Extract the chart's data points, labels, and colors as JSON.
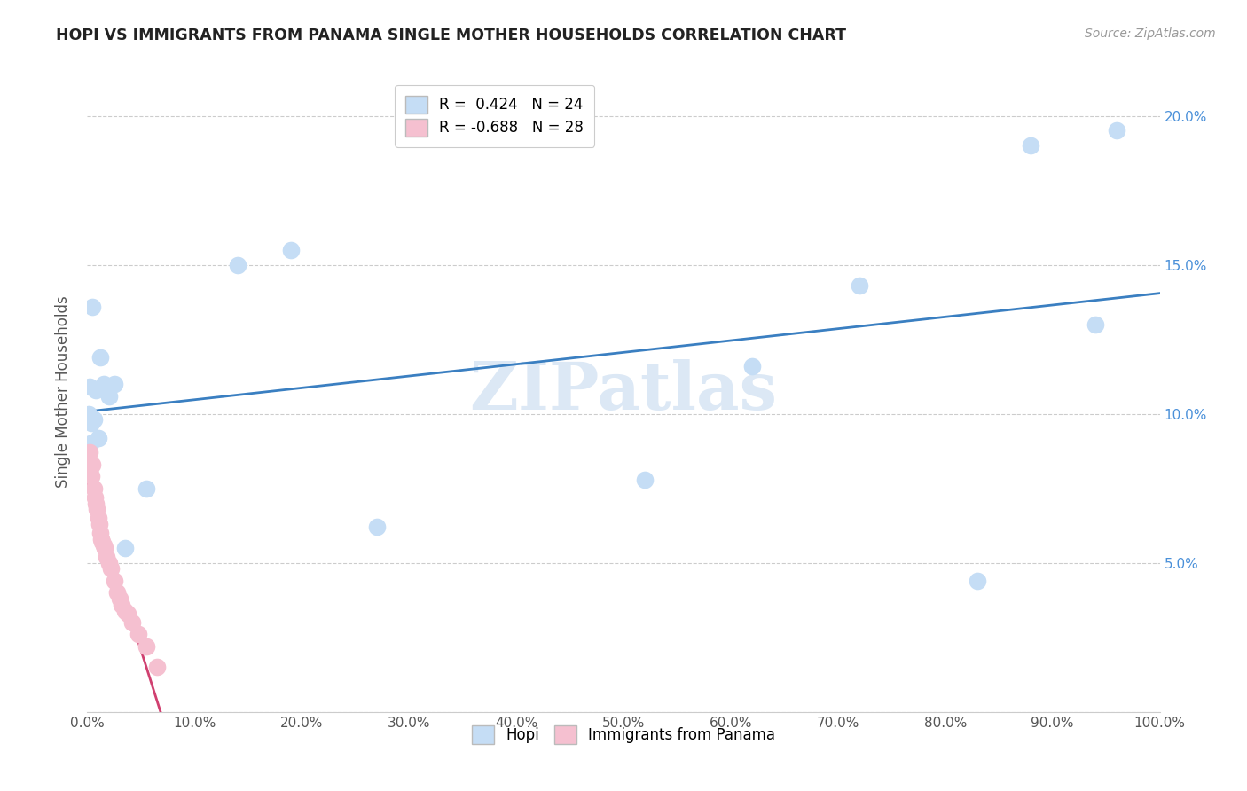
{
  "title": "HOPI VS IMMIGRANTS FROM PANAMA SINGLE MOTHER HOUSEHOLDS CORRELATION CHART",
  "source": "Source: ZipAtlas.com",
  "ylabel": "Single Mother Households",
  "legend_entries": [
    {
      "label": "R =  0.424   N = 24",
      "color": "#b8d4f0"
    },
    {
      "label": "R = -0.688   N = 28",
      "color": "#f0b8cc"
    }
  ],
  "legend_labels": [
    "Hopi",
    "Immigrants from Panama"
  ],
  "hopi_x": [
    0.001,
    0.002,
    0.003,
    0.004,
    0.005,
    0.006,
    0.008,
    0.01,
    0.012,
    0.015,
    0.02,
    0.025,
    0.035,
    0.055,
    0.14,
    0.19,
    0.27,
    0.52,
    0.62,
    0.72,
    0.83,
    0.88,
    0.94,
    0.96
  ],
  "hopi_y": [
    0.1,
    0.109,
    0.09,
    0.097,
    0.136,
    0.098,
    0.108,
    0.092,
    0.119,
    0.11,
    0.106,
    0.11,
    0.055,
    0.075,
    0.15,
    0.155,
    0.062,
    0.078,
    0.116,
    0.143,
    0.044,
    0.19,
    0.13,
    0.195
  ],
  "panama_x": [
    0.002,
    0.003,
    0.004,
    0.005,
    0.006,
    0.007,
    0.008,
    0.009,
    0.01,
    0.011,
    0.012,
    0.013,
    0.014,
    0.015,
    0.016,
    0.018,
    0.02,
    0.022,
    0.025,
    0.028,
    0.03,
    0.032,
    0.035,
    0.038,
    0.042,
    0.048,
    0.055,
    0.065
  ],
  "panama_y": [
    0.087,
    0.082,
    0.079,
    0.083,
    0.075,
    0.072,
    0.07,
    0.068,
    0.065,
    0.063,
    0.06,
    0.058,
    0.057,
    0.056,
    0.055,
    0.052,
    0.05,
    0.048,
    0.044,
    0.04,
    0.038,
    0.036,
    0.034,
    0.033,
    0.03,
    0.026,
    0.022,
    0.015
  ],
  "hopi_color": "#c5ddf5",
  "panama_color": "#f5c0d0",
  "hopi_line_color": "#3a7fc1",
  "panama_line_color": "#d04070",
  "background_color": "#ffffff",
  "watermark": "ZIPatlas",
  "xlim": [
    0.0,
    1.0
  ],
  "ylim": [
    0.0,
    0.215
  ],
  "xticks": [
    0.0,
    0.1,
    0.2,
    0.3,
    0.4,
    0.5,
    0.6,
    0.7,
    0.8,
    0.9,
    1.0
  ],
  "yticks": [
    0.0,
    0.05,
    0.1,
    0.15,
    0.2
  ],
  "xticklabels": [
    "0.0%",
    "10.0%",
    "20.0%",
    "30.0%",
    "40.0%",
    "50.0%",
    "60.0%",
    "70.0%",
    "80.0%",
    "90.0%",
    "100.0%"
  ],
  "right_yticklabels": [
    "",
    "5.0%",
    "10.0%",
    "15.0%",
    "20.0%"
  ],
  "hopi_line_xrange": [
    0.0,
    1.0
  ],
  "panama_line_xrange": [
    0.0,
    0.08
  ]
}
